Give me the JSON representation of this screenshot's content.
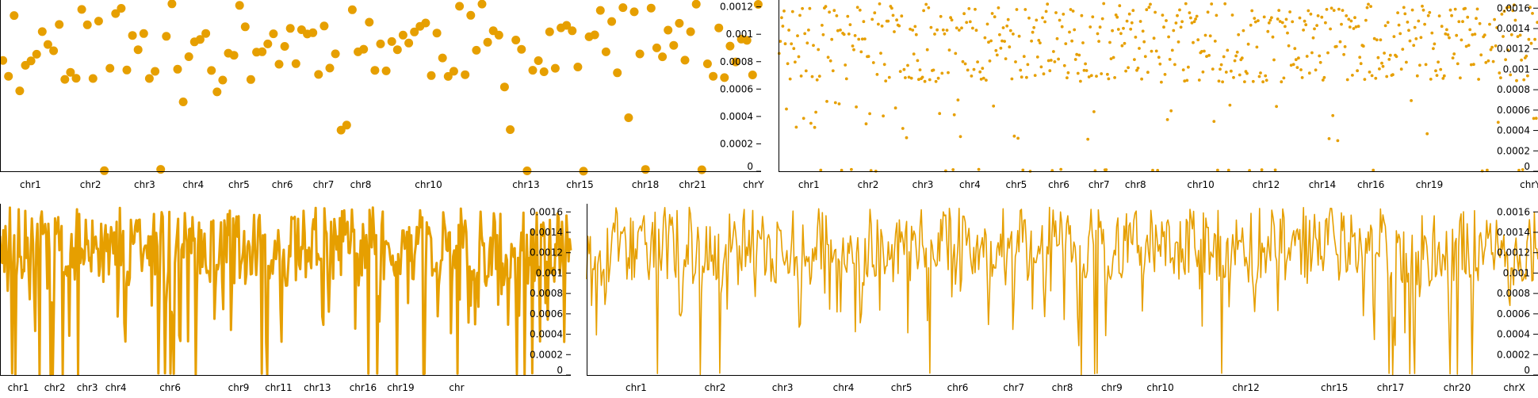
{
  "chart_data": [
    {
      "type": "scatter",
      "marker": "large-dots",
      "color": "#E69F00",
      "ylim": [
        0,
        0.00125
      ],
      "ytick_labels": [
        "0",
        "0.0002",
        "0.0004",
        "0.0006",
        "0.0008",
        "0.001",
        "0.0012"
      ],
      "x_range": [
        0,
        1000
      ],
      "x_tick_labels": [
        "chr1",
        "chr2",
        "chr3",
        "chr4",
        "chr5",
        "chr6",
        "chr7",
        "chr8",
        "chr10",
        "chr13",
        "chr15",
        "chr18",
        "chr21",
        "chrY"
      ],
      "seed": 11,
      "n_points": 135,
      "point_count": 135,
      "grid": false
    },
    {
      "type": "scatter",
      "marker": "small-dots",
      "color": "#E69F00",
      "ylim": [
        0,
        0.00168
      ],
      "ytick_labels": [
        "0",
        "0.0002",
        "0.0004",
        "0.0006",
        "0.0008",
        "0.001",
        "0.0012",
        "0.0014",
        "0.0016"
      ],
      "x_range": [
        0,
        1000
      ],
      "x_tick_labels": [
        "chr1",
        "chr2",
        "chr3",
        "chr4",
        "chr5",
        "chr6",
        "chr7",
        "chr8",
        "chr10",
        "chr12",
        "chr14",
        "chr16",
        "chr19",
        "chrY"
      ],
      "seed": 23,
      "n_points": 620,
      "point_count": 620,
      "grid": false
    },
    {
      "type": "line",
      "color": "#E69F00",
      "stroke": "thick",
      "ylim": [
        0,
        0.00168
      ],
      "ytick_labels": [
        "0",
        "0.0002",
        "0.0004",
        "0.0006",
        "0.0008",
        "0.001",
        "0.0012",
        "0.0014",
        "0.0016"
      ],
      "x_range": [
        0,
        1000
      ],
      "x_tick_labels": [
        "chr1",
        "chr2",
        "chr3",
        "chr4",
        "chr6",
        "chr9",
        "chr11",
        "chr13",
        "chr16",
        "chr19",
        "chr"
      ],
      "seed": 37,
      "n_points": 520,
      "point_count": 520,
      "grid": false
    },
    {
      "type": "line",
      "color": "#E69F00",
      "stroke": "thin",
      "ylim": [
        0,
        0.00168
      ],
      "ytick_labels": [
        "0",
        "0.0002",
        "0.0004",
        "0.0006",
        "0.0008",
        "0.001",
        "0.0012",
        "0.0014",
        "0.0016"
      ],
      "x_range": [
        0,
        1000
      ],
      "x_tick_labels": [
        "chr1",
        "chr2",
        "chr3",
        "chr4",
        "chr5",
        "chr6",
        "chr7",
        "chr8",
        "chr9",
        "chr10",
        "chr12",
        "chr15",
        "chr17",
        "chr20",
        "chrX"
      ],
      "seed": 53,
      "n_points": 780,
      "point_count": 780,
      "grid": false
    }
  ]
}
